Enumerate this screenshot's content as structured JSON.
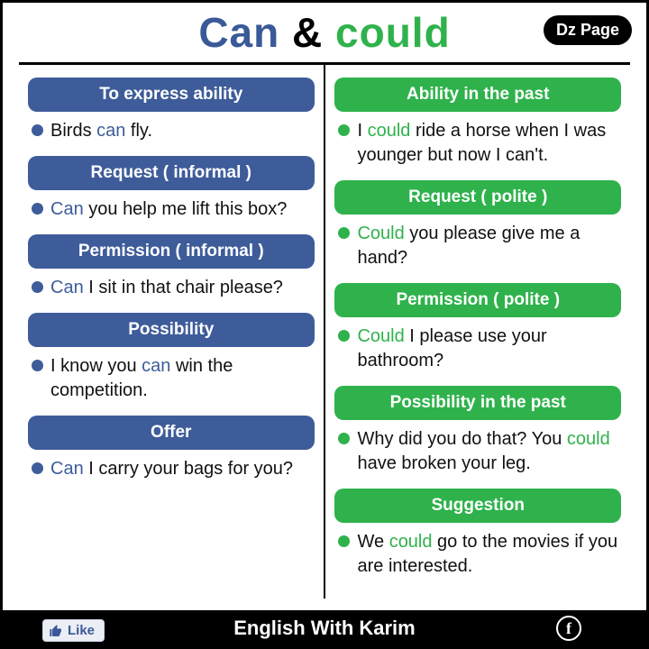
{
  "title": {
    "can": "Can",
    "amp": "&",
    "could": "could"
  },
  "badge": "Dz Page",
  "colors": {
    "blue": "#3e5c9a",
    "green": "#2fb24c",
    "black": "#000000",
    "white": "#ffffff"
  },
  "left": [
    {
      "heading": "To express ability",
      "parts": [
        "Birds ",
        "can",
        " fly."
      ]
    },
    {
      "heading": "Request ( informal )",
      "parts": [
        "",
        "Can",
        " you help me lift this box?"
      ]
    },
    {
      "heading": "Permission ( informal )",
      "parts": [
        "",
        "Can",
        " I sit in that chair please?"
      ]
    },
    {
      "heading": "Possibility",
      "parts": [
        "I know you ",
        "can",
        " win the competition."
      ]
    },
    {
      "heading": "Offer",
      "parts": [
        "",
        "Can",
        " I carry your bags for you?"
      ]
    }
  ],
  "right": [
    {
      "heading": "Ability in the past",
      "parts": [
        "I ",
        "could",
        " ride a horse when I was younger but now I can't."
      ]
    },
    {
      "heading": "Request ( polite )",
      "parts": [
        "",
        "Could",
        " you please give me a hand?"
      ]
    },
    {
      "heading": "Permission ( polite )",
      "parts": [
        "",
        "Could",
        " I please use your bathroom?"
      ]
    },
    {
      "heading": "Possibility in the past",
      "parts": [
        "Why did you do that? You ",
        "could",
        " have broken your leg."
      ]
    },
    {
      "heading": "Suggestion",
      "parts": [
        "We ",
        "could",
        " go to the movies if you are interested."
      ]
    }
  ],
  "footer": {
    "like": "Like",
    "brand": "English With Karim",
    "fb": "f"
  }
}
